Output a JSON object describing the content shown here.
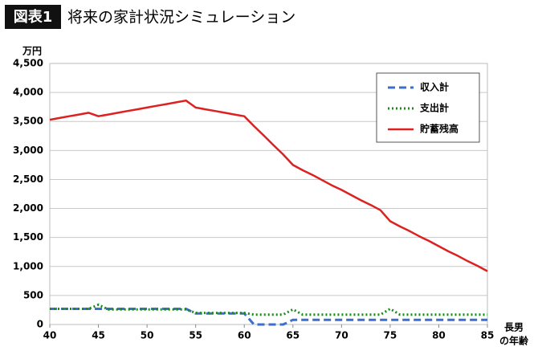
{
  "chart_data": {
    "type": "line",
    "badge": "図表1",
    "title": "将来の家計状況シミュレーション",
    "ylabel": "万円",
    "xlabel_lines": [
      "長男",
      "の年齢"
    ],
    "x": [
      40,
      41,
      42,
      43,
      44,
      45,
      46,
      47,
      48,
      49,
      50,
      51,
      52,
      53,
      54,
      55,
      56,
      57,
      58,
      59,
      60,
      61,
      62,
      63,
      64,
      65,
      66,
      67,
      68,
      69,
      70,
      71,
      72,
      73,
      74,
      75,
      76,
      77,
      78,
      79,
      80,
      81,
      82,
      83,
      84,
      85
    ],
    "xlim": [
      40,
      85
    ],
    "xticks": [
      40,
      45,
      50,
      55,
      60,
      65,
      70,
      75,
      80,
      85
    ],
    "ylim": [
      0,
      4500
    ],
    "yticks": [
      0,
      500,
      {
        "value": 1000,
        "label": "1,000"
      },
      {
        "value": 1500,
        "label": "1,500"
      },
      {
        "value": 2000,
        "label": "2,000"
      },
      {
        "value": 2500,
        "label": "2,500"
      },
      {
        "value": 3000,
        "label": "3,000"
      },
      {
        "value": 3500,
        "label": "3,500"
      },
      {
        "value": 4000,
        "label": "4,000"
      },
      {
        "value": 4500,
        "label": "4,500"
      }
    ],
    "grid": true,
    "legend": "top-right",
    "series": [
      {
        "name": "収入計",
        "color": "#3a6fd0",
        "style": "dashed",
        "values": [
          270,
          270,
          270,
          270,
          270,
          270,
          270,
          270,
          270,
          270,
          270,
          270,
          270,
          270,
          270,
          190,
          190,
          190,
          190,
          190,
          190,
          0,
          0,
          0,
          0,
          80,
          80,
          80,
          80,
          80,
          80,
          80,
          80,
          80,
          80,
          80,
          80,
          80,
          80,
          80,
          80,
          80,
          80,
          80,
          80,
          80
        ]
      },
      {
        "name": "支出計",
        "color": "#1a8a1a",
        "style": "dotted",
        "values": [
          270,
          270,
          270,
          270,
          270,
          340,
          260,
          260,
          260,
          260,
          260,
          260,
          260,
          260,
          260,
          200,
          200,
          200,
          200,
          200,
          200,
          170,
          170,
          170,
          170,
          260,
          170,
          170,
          170,
          170,
          170,
          170,
          170,
          170,
          170,
          270,
          170,
          170,
          170,
          170,
          170,
          170,
          170,
          170,
          170,
          170
        ]
      },
      {
        "name": "貯蓄残高",
        "color": "#dd2020",
        "style": "solid",
        "values": [
          3530,
          3560,
          3590,
          3620,
          3650,
          3590,
          3620,
          3650,
          3680,
          3710,
          3740,
          3770,
          3800,
          3830,
          3860,
          3740,
          3710,
          3680,
          3650,
          3620,
          3590,
          3420,
          3260,
          3090,
          2930,
          2750,
          2660,
          2580,
          2490,
          2400,
          2320,
          2230,
          2140,
          2060,
          1970,
          1780,
          1690,
          1610,
          1520,
          1440,
          1350,
          1260,
          1180,
          1090,
          1010,
          920
        ]
      }
    ]
  }
}
